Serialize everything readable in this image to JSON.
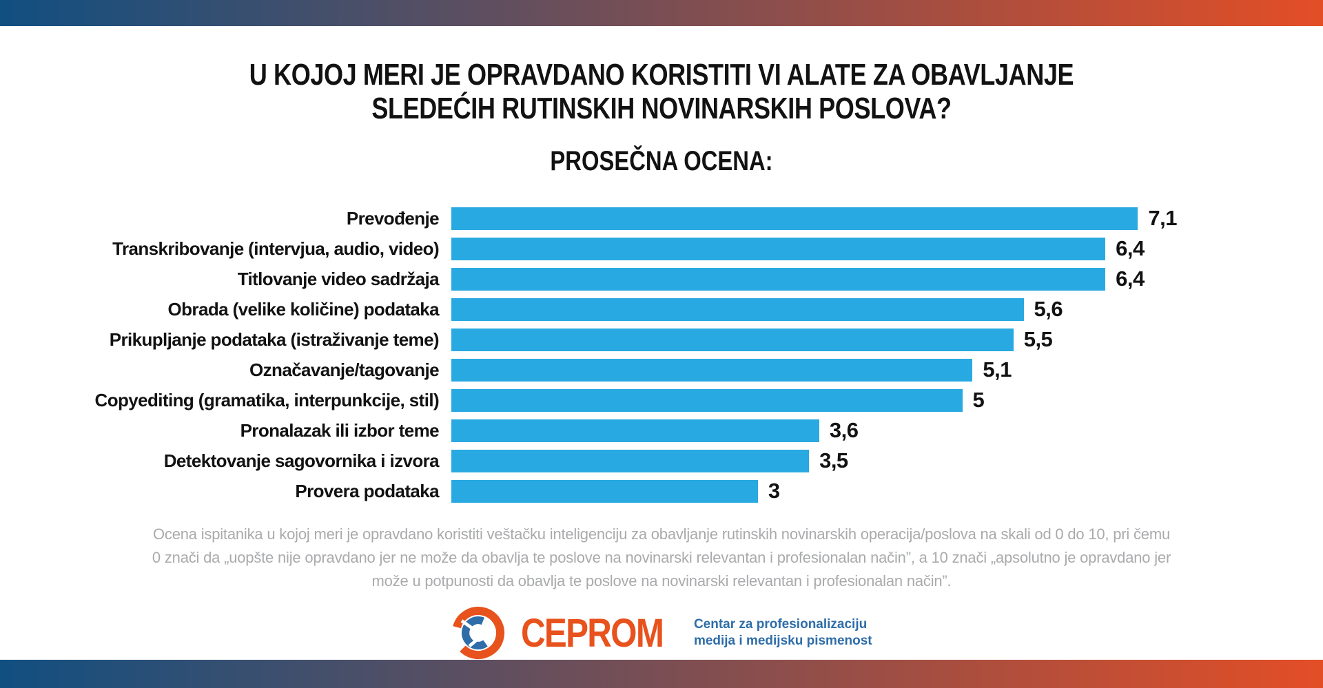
{
  "header": {
    "title_lines": [
      "U kojoj meri je opravdano koristiti VI alate za obavljanje",
      "sledećih rutinskih novinarskih poslova?"
    ],
    "subtitle": "PROSEČNA OCENA:"
  },
  "chart_data": {
    "type": "bar",
    "orientation": "horizontal",
    "title": "U kojoj meri je opravdano koristiti VI alate za obavljanje sledećih rutinskih novinarskih poslova?",
    "subtitle": "Prosečna ocena",
    "categories": [
      "Prevođenje",
      "Transkribovanje (intervjua, audio, video)",
      "Titlovanje video sadržaja",
      "Obrada (velike količine) podataka",
      "Prikupljanje podataka (istraživanje teme)",
      "Označavanje/tagovanje",
      "Copyediting (gramatika, interpunkcije, stil)",
      "Pronalazak ili izbor teme",
      "Detektovanje sagovornika i izvora",
      "Provera podataka"
    ],
    "values": [
      7.1,
      6.4,
      6.4,
      5.6,
      5.5,
      5.1,
      5,
      3.6,
      3.5,
      3
    ],
    "value_labels": [
      "7,1",
      "6,4",
      "6,4",
      "5,6",
      "5,5",
      "5,1",
      "5",
      "3,6",
      "3,5",
      "3"
    ],
    "xlabel": "",
    "ylabel": "",
    "xlim": [
      0,
      7.1
    ],
    "grid": false,
    "legend": false,
    "bar_color": "#29A9E1"
  },
  "footnote": {
    "lines": [
      "Ocena ispitanika u kojoj meri je opravdano koristiti veštačku inteligenciju za obavljanje rutinskih novinarskih operacija/poslova na skali od 0 do 10, pri čemu",
      "0 znači da „uopšte nije opravdano jer ne može da obavlja te poslove na novinarski relevantan i profesionalan način”, a 10 znači „apsolutno je opravdano jer",
      "može u potpunosti da obavlja te poslove na novinarski relevantan i profesionalan način”."
    ]
  },
  "logo": {
    "name": "CEPROM",
    "tagline_lines": [
      "Centar za profesionalizaciju",
      "medija i medijsku pismenost"
    ],
    "orange": "#E8521D",
    "blue": "#2E6DA8"
  },
  "decor": {
    "gradient_left": "#114F81",
    "gradient_right": "#E34E26"
  }
}
